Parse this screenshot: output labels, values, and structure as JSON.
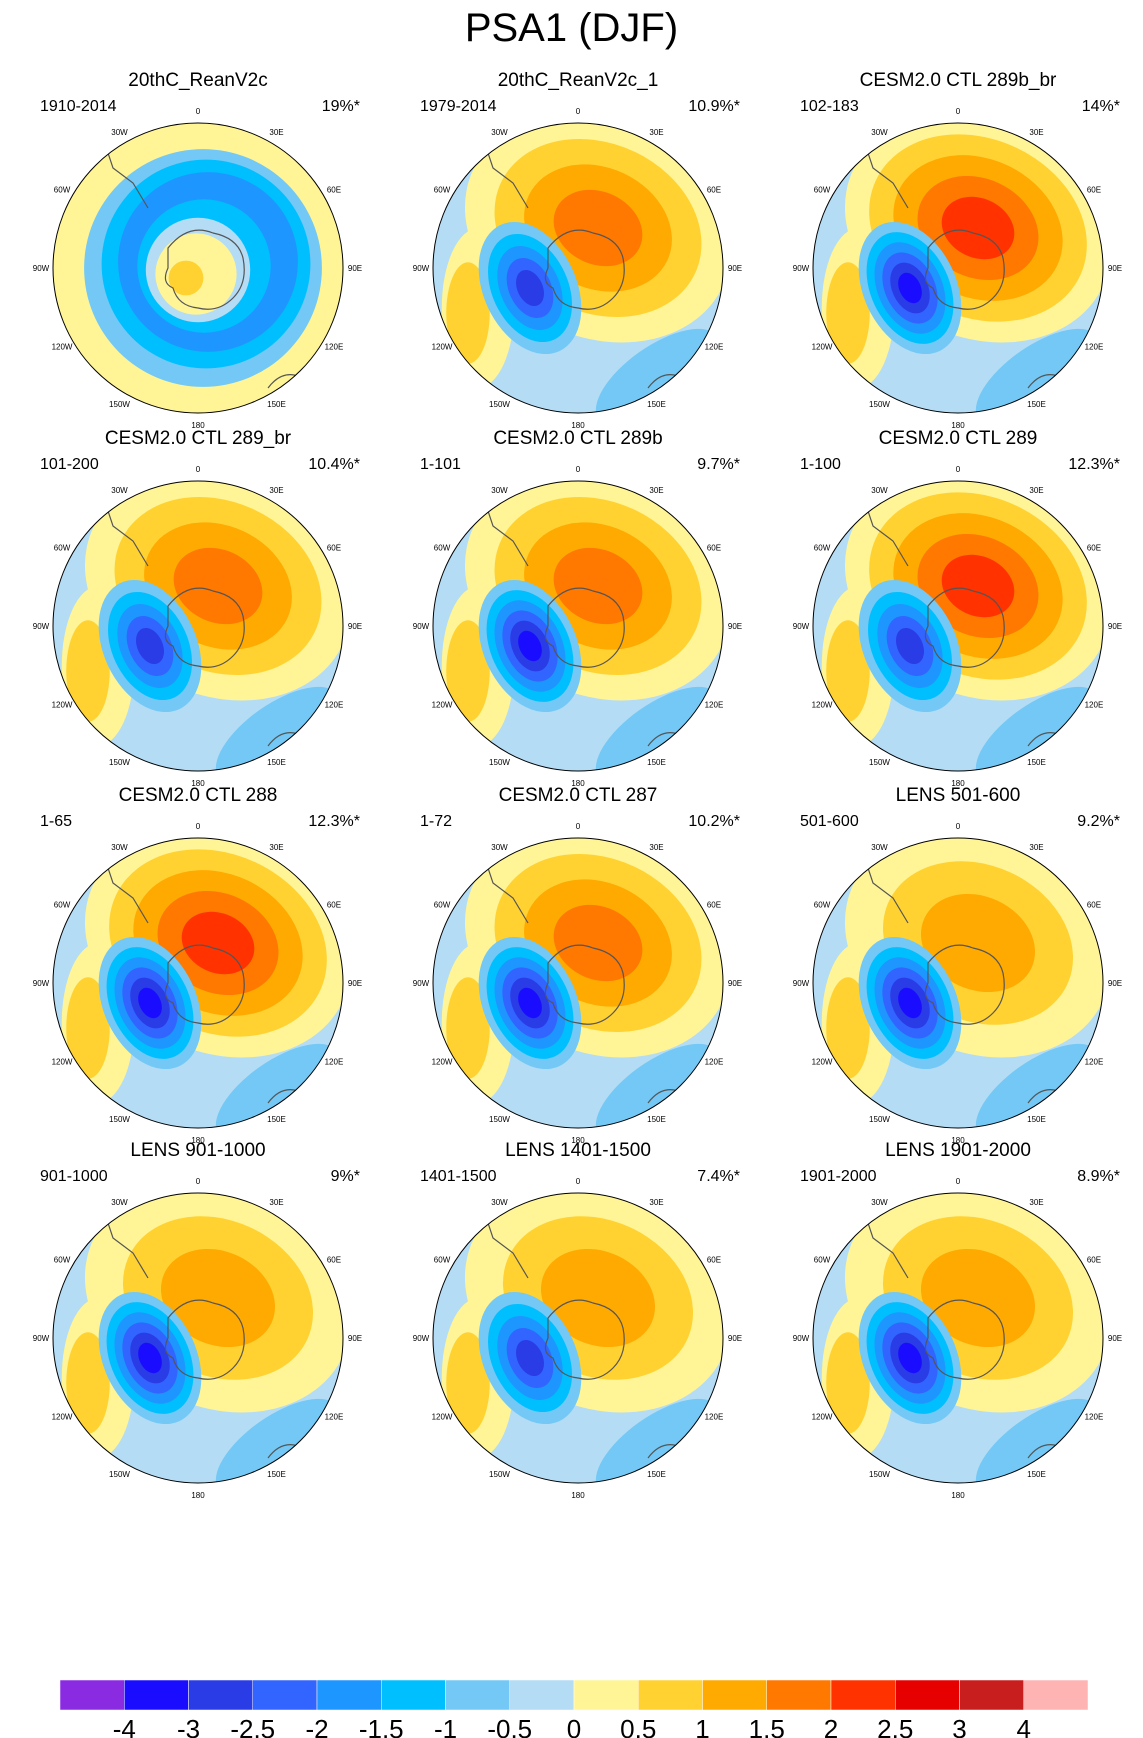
{
  "figure": {
    "title": "PSA1 (DJF)",
    "longitude_labels": [
      "0",
      "30E",
      "60E",
      "90E",
      "120E",
      "150E",
      "180",
      "150W",
      "120W",
      "90W",
      "60W",
      "30W"
    ]
  },
  "panels": [
    {
      "title": "20thC_ReanV2c",
      "period": "1910-2014",
      "variance": "19%*",
      "pattern": "ring"
    },
    {
      "title": "20thC_ReanV2c_1",
      "period": "1979-2014",
      "variance": "10.9%*",
      "pattern": "wave",
      "pos": 2.0,
      "neg": -2.5
    },
    {
      "title": "CESM2.0 CTL 289b_br",
      "period": "102-183",
      "variance": "14%*",
      "pattern": "wave",
      "pos": 2.5,
      "neg": -3.0
    },
    {
      "title": "CESM2.0 CTL 289_br",
      "period": "101-200",
      "variance": "10.4%*",
      "pattern": "wave",
      "pos": 2.0,
      "neg": -2.5
    },
    {
      "title": "CESM2.0 CTL 289b",
      "period": "1-101",
      "variance": "9.7%*",
      "pattern": "wave",
      "pos": 2.0,
      "neg": -3.0
    },
    {
      "title": "CESM2.0 CTL 289",
      "period": "1-100",
      "variance": "12.3%*",
      "pattern": "wave",
      "pos": 2.5,
      "neg": -2.5
    },
    {
      "title": "CESM2.0 CTL 288",
      "period": "1-65",
      "variance": "12.3%*",
      "pattern": "wave",
      "pos": 2.5,
      "neg": -3.0
    },
    {
      "title": "CESM2.0 CTL 287",
      "period": "1-72",
      "variance": "10.2%*",
      "pattern": "wave",
      "pos": 2.0,
      "neg": -3.0
    },
    {
      "title": "LENS 501-600",
      "period": "501-600",
      "variance": "9.2%*",
      "pattern": "wave",
      "pos": 1.5,
      "neg": -3.0
    },
    {
      "title": "LENS 901-1000",
      "period": "901-1000",
      "variance": "9%*",
      "pattern": "wave",
      "pos": 1.5,
      "neg": -3.0
    },
    {
      "title": "LENS 1401-1500",
      "period": "1401-1500",
      "variance": "7.4%*",
      "pattern": "wave",
      "pos": 1.5,
      "neg": -2.5
    },
    {
      "title": "LENS 1901-2000",
      "period": "1901-2000",
      "variance": "8.9%*",
      "pattern": "wave",
      "pos": 1.5,
      "neg": -3.0
    }
  ],
  "colorbar": {
    "ticks": [
      "-4",
      "-3",
      "-2.5",
      "-2",
      "-1.5",
      "-1",
      "-0.5",
      "0",
      "0.5",
      "1",
      "1.5",
      "2",
      "2.5",
      "3",
      "4"
    ],
    "colors": [
      "#8a2be2",
      "#1a0dff",
      "#2a3ce6",
      "#3264ff",
      "#1e96ff",
      "#00bfff",
      "#73c8f5",
      "#b4dcf5",
      "#fff596",
      "#ffd232",
      "#ffaa00",
      "#ff7800",
      "#ff3200",
      "#e60000",
      "#c81e1e",
      "#ffb4b4"
    ]
  }
}
